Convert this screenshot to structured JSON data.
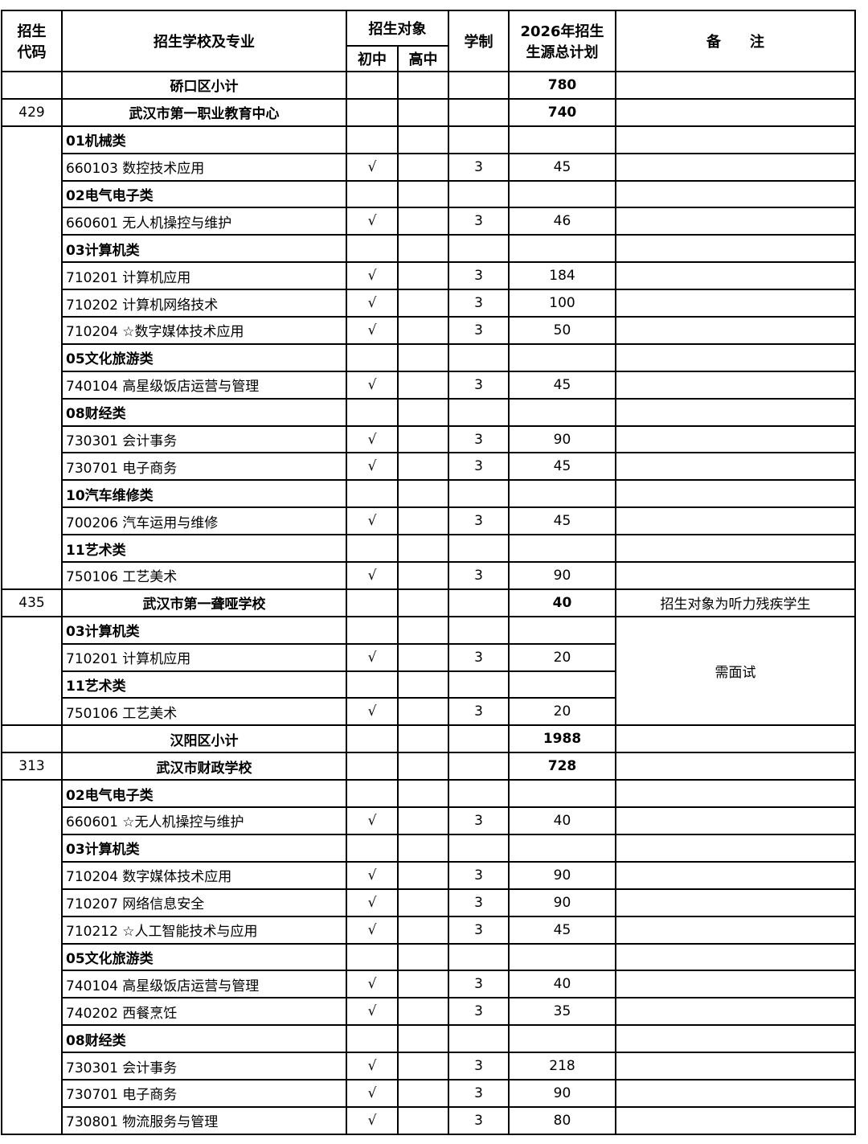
{
  "header": {
    "code": "招生代码",
    "code_l1": "招生",
    "code_l2": "代码",
    "school_major": "招生学校及专业",
    "target": "招生对象",
    "junior": "初中",
    "senior": "高中",
    "years": "学制",
    "plan_l1": "2026年招生",
    "plan_l2": "生源总计划",
    "remark": "备　　注"
  },
  "districts": [
    {
      "name": "硚口区小计",
      "total": "780",
      "schools": [
        {
          "code": "429",
          "name": "武汉市第一职业教育中心",
          "total": "740",
          "remark": "",
          "sub_remark": "",
          "items": [
            {
              "category": "01机械类"
            },
            {
              "major": "660103 数控技术应用",
              "junior": "√",
              "senior": "",
              "years": "3",
              "plan": "45"
            },
            {
              "category": "02电气电子类"
            },
            {
              "major": "660601 无人机操控与维护",
              "junior": "√",
              "senior": "",
              "years": "3",
              "plan": "46"
            },
            {
              "category": "03计算机类"
            },
            {
              "major": "710201 计算机应用",
              "junior": "√",
              "senior": "",
              "years": "3",
              "plan": "184"
            },
            {
              "major": "710202 计算机网络技术",
              "junior": "√",
              "senior": "",
              "years": "3",
              "plan": "100"
            },
            {
              "major": "710204 ☆数字媒体技术应用",
              "junior": "√",
              "senior": "",
              "years": "3",
              "plan": "50"
            },
            {
              "category": "05文化旅游类"
            },
            {
              "major": "740104 高星级饭店运营与管理",
              "junior": "√",
              "senior": "",
              "years": "3",
              "plan": "45"
            },
            {
              "category": "08财经类"
            },
            {
              "major": "730301 会计事务",
              "junior": "√",
              "senior": "",
              "years": "3",
              "plan": "90"
            },
            {
              "major": "730701 电子商务",
              "junior": "√",
              "senior": "",
              "years": "3",
              "plan": "45"
            },
            {
              "category": "10汽车维修类"
            },
            {
              "major": "700206 汽车运用与维修",
              "junior": "√",
              "senior": "",
              "years": "3",
              "plan": "45"
            },
            {
              "category": "11艺术类"
            },
            {
              "major": "750106 工艺美术",
              "junior": "√",
              "senior": "",
              "years": "3",
              "plan": "90"
            }
          ]
        },
        {
          "code": "435",
          "name": "武汉市第一聋哑学校",
          "total": "40",
          "remark": "招生对象为听力残疾学生",
          "sub_remark": "需面试",
          "items": [
            {
              "category": "03计算机类"
            },
            {
              "major": "710201 计算机应用",
              "junior": "√",
              "senior": "",
              "years": "3",
              "plan": "20"
            },
            {
              "category": "11艺术类"
            },
            {
              "major": "750106 工艺美术",
              "junior": "√",
              "senior": "",
              "years": "3",
              "plan": "20"
            }
          ]
        }
      ]
    },
    {
      "name": "汉阳区小计",
      "total": "1988",
      "schools": [
        {
          "code": "313",
          "name": "武汉市财政学校",
          "total": "728",
          "remark": "",
          "sub_remark": "",
          "items": [
            {
              "category": "02电气电子类"
            },
            {
              "major": "660601 ☆无人机操控与维护",
              "junior": "√",
              "senior": "",
              "years": "3",
              "plan": "40"
            },
            {
              "category": "03计算机类"
            },
            {
              "major": "710204 数字媒体技术应用",
              "junior": "√",
              "senior": "",
              "years": "3",
              "plan": "90"
            },
            {
              "major": "710207 网络信息安全",
              "junior": "√",
              "senior": "",
              "years": "3",
              "plan": "90"
            },
            {
              "major": "710212 ☆人工智能技术与应用",
              "junior": "√",
              "senior": "",
              "years": "3",
              "plan": "45"
            },
            {
              "category": "05文化旅游类"
            },
            {
              "major": "740104 高星级饭店运营与管理",
              "junior": "√",
              "senior": "",
              "years": "3",
              "plan": "40"
            },
            {
              "major": "740202 西餐烹饪",
              "junior": "√",
              "senior": "",
              "years": "3",
              "plan": "35"
            },
            {
              "category": "08财经类"
            },
            {
              "major": "730301 会计事务",
              "junior": "√",
              "senior": "",
              "years": "3",
              "plan": "218"
            },
            {
              "major": "730701 电子商务",
              "junior": "√",
              "senior": "",
              "years": "3",
              "plan": "90"
            },
            {
              "major": "730801 物流服务与管理",
              "junior": "√",
              "senior": "",
              "years": "3",
              "plan": "80"
            }
          ]
        }
      ]
    }
  ]
}
